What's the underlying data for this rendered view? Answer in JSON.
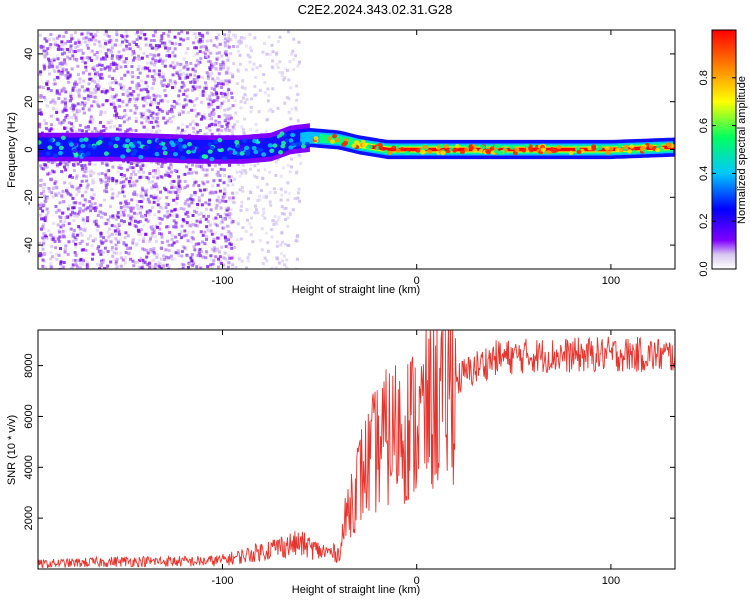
{
  "title": "C2E2.2024.343.02.31.G28",
  "chart_data": [
    {
      "type": "heatmap",
      "xlabel": "Height of straight line (km)",
      "ylabel": "Frequency (Hz)",
      "xlim": [
        -195,
        133
      ],
      "ylim": [
        -50,
        50
      ],
      "xticks": [
        -100,
        0,
        100
      ],
      "yticks": [
        -40,
        -20,
        0,
        20,
        40
      ],
      "colorbar": {
        "label": "Normalized spectral amplitude",
        "range": [
          0,
          1
        ],
        "ticks": [
          "0.0",
          "0.2",
          "0.4",
          "0.6",
          "0.8"
        ]
      },
      "ridge": [
        {
          "x": -195,
          "f": 1
        },
        {
          "x": -150,
          "f": 1
        },
        {
          "x": -110,
          "f": 0
        },
        {
          "x": -100,
          "f": 0
        },
        {
          "x": -90,
          "f": 0
        },
        {
          "x": -75,
          "f": 1
        },
        {
          "x": -65,
          "f": 4
        },
        {
          "x": -55,
          "f": 5
        },
        {
          "x": -40,
          "f": 4
        },
        {
          "x": -30,
          "f": 2
        },
        {
          "x": -15,
          "f": 0
        },
        {
          "x": 0,
          "f": 0
        },
        {
          "x": 50,
          "f": 0
        },
        {
          "x": 100,
          "f": 0
        },
        {
          "x": 133,
          "f": 1
        }
      ],
      "noise_extent": {
        "wide_band_until_km": -100,
        "sparse_band_until_km": -60
      }
    },
    {
      "type": "line",
      "xlabel": "Height of straight line (km)",
      "ylabel": "SNR (10 * v/v)",
      "xlim": [
        -195,
        133
      ],
      "ylim": [
        0,
        9400
      ],
      "xticks": [
        -100,
        0,
        100
      ],
      "yticks": [
        2000,
        4000,
        6000,
        8000
      ],
      "color": "#e8332c",
      "series": [
        {
          "x": [
            -195,
            -150,
            -110,
            -100,
            -90,
            -80,
            -70,
            -60,
            -50,
            -40,
            -35,
            -30,
            -20,
            -10,
            0,
            10,
            20,
            30,
            40,
            60,
            80,
            100,
            133
          ],
          "y": [
            200,
            300,
            300,
            350,
            500,
            700,
            900,
            1000,
            700,
            600,
            2500,
            3500,
            4800,
            5500,
            5700,
            6600,
            7400,
            7900,
            8300,
            8400,
            8400,
            8450,
            8400
          ]
        }
      ]
    }
  ]
}
